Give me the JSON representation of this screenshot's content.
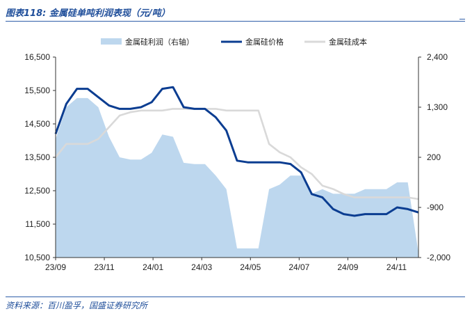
{
  "header": {
    "title": "图表118:  金属硅单吨利润表现（元/吨）"
  },
  "footer": {
    "source": "资料来源：百川盈孚，国盛证券研究所"
  },
  "legend": [
    {
      "label": "金属硅利润（右轴）",
      "color": "#bdd7ee",
      "kind": "area"
    },
    {
      "label": "金属硅价格",
      "color": "#0b3d91",
      "kind": "line"
    },
    {
      "label": "金属硅成本",
      "color": "#d9d9d9",
      "kind": "line"
    }
  ],
  "chart_data": {
    "type": "line",
    "x_ticks": [
      "23/09",
      "23/11",
      "24/01",
      "24/03",
      "24/05",
      "24/07",
      "24/09",
      "24/11"
    ],
    "x": [
      "23/09",
      "23/09",
      "23/10",
      "23/10",
      "23/10",
      "23/11",
      "23/11",
      "23/11",
      "23/12",
      "23/12",
      "24/01",
      "24/01",
      "24/01",
      "24/02",
      "24/02",
      "24/03",
      "24/03",
      "24/04",
      "24/04",
      "24/04",
      "24/05",
      "24/05",
      "24/06",
      "24/06",
      "24/07",
      "24/07",
      "24/08",
      "24/08",
      "24/09",
      "24/09",
      "24/10",
      "24/10",
      "24/11",
      "24/11",
      "24/12"
    ],
    "y_left": {
      "ticks": [
        10500,
        11500,
        12500,
        13500,
        14500,
        15500,
        16500
      ],
      "ylim": [
        10500,
        16500
      ]
    },
    "y_right": {
      "ticks": [
        -2000,
        -900,
        200,
        1300,
        2400
      ],
      "ylim": [
        -2000,
        2400
      ]
    },
    "series": [
      {
        "name": "金属硅价格",
        "axis": "left",
        "values": [
          14200,
          15100,
          15550,
          15550,
          15300,
          15050,
          14950,
          14950,
          15000,
          15150,
          15550,
          15600,
          15000,
          14950,
          14950,
          14700,
          14300,
          13400,
          13350,
          13350,
          13350,
          13350,
          13300,
          13050,
          12400,
          12300,
          11950,
          11800,
          11750,
          11800,
          11800,
          11800,
          12000,
          11950,
          11850
        ]
      },
      {
        "name": "金属硅成本",
        "axis": "left",
        "values": [
          13500,
          13900,
          13900,
          13900,
          14050,
          14400,
          14750,
          14850,
          14900,
          14900,
          14900,
          14950,
          14950,
          14950,
          14950,
          14950,
          14900,
          14900,
          14900,
          14900,
          13900,
          13650,
          13500,
          13200,
          13000,
          12650,
          12550,
          12400,
          12300,
          12300,
          12300,
          12300,
          12300,
          12300,
          12250
        ]
      },
      {
        "name": "金属硅利润（右轴）",
        "axis": "right",
        "values": [
          600,
          1300,
          1500,
          1500,
          1300,
          650,
          200,
          150,
          150,
          300,
          700,
          650,
          80,
          50,
          50,
          -200,
          -500,
          -1800,
          -1800,
          -1800,
          -500,
          -400,
          -200,
          -200,
          -600,
          -500,
          -600,
          -600,
          -600,
          -500,
          -500,
          -500,
          -350,
          -350,
          -1900
        ]
      }
    ]
  }
}
